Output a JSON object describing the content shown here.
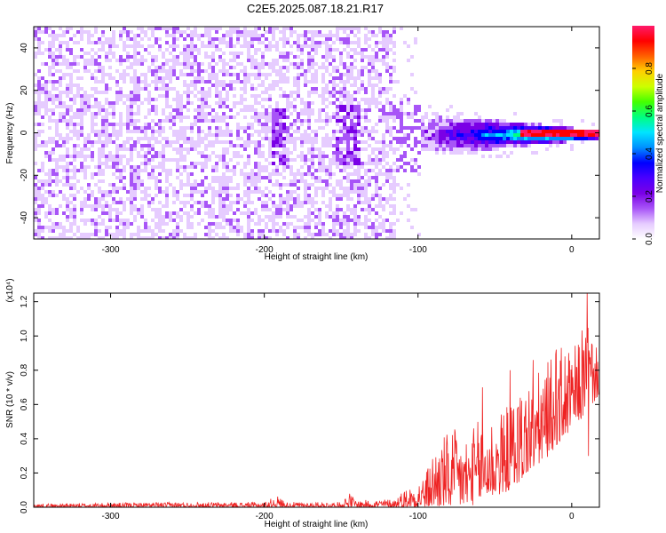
{
  "figure": {
    "title": "C2E5.2025.087.18.21.R17"
  },
  "chart_data": [
    {
      "type": "heatmap",
      "name": "spectrogram",
      "xlabel": "Height of straight line (km)",
      "ylabel": "Frequency (Hz)",
      "xlim": [
        -350,
        18
      ],
      "ylim": [
        -50,
        50
      ],
      "xticks": [
        -300,
        -200,
        -100,
        0
      ],
      "yticks": [
        -40,
        -20,
        0,
        20,
        40
      ],
      "colorbar": {
        "label": "Normalized spectral amplitude",
        "range": [
          0,
          1
        ],
        "ticks": [
          0.0,
          0.2,
          0.4,
          0.6,
          0.8
        ],
        "colors": [
          "#ffffff",
          "#e6ccff",
          "#a855f7",
          "#7a00e6",
          "#4a00ff",
          "#0000ff",
          "#0090ff",
          "#00e5ff",
          "#00ff80",
          "#44ff00",
          "#ccff00",
          "#ffd000",
          "#ff6000",
          "#ff0000",
          "#ff1a6b"
        ]
      },
      "features": {
        "noise_end_x": -115,
        "noise_sparse_end_x": -100,
        "signal_start_x": -110,
        "signal_center_freq": 0,
        "bright_columns_x": [
          -192,
          -150,
          -143,
          -108
        ]
      }
    },
    {
      "type": "line",
      "name": "snr",
      "xlabel": "Height of straight line (km)",
      "ylabel": "SNR (10 * v/v)",
      "scale_label": "(x10⁴)",
      "xlim": [
        -350,
        18
      ],
      "ylim": [
        0,
        1.25
      ],
      "xticks": [
        -300,
        -200,
        -100,
        0
      ],
      "yticks": [
        0.0,
        0.2,
        0.4,
        0.6,
        0.8,
        1.0,
        1.2
      ],
      "ytick_labels": [
        "0.0",
        "0.2",
        "0.4",
        "0.6",
        "0.8",
        "1.0",
        "1.2"
      ],
      "color": "#ee2222",
      "envelope": {
        "x": [
          -350,
          -260,
          -200,
          -192,
          -185,
          -150,
          -145,
          -140,
          -115,
          -110,
          -104,
          -100,
          -95,
          -90,
          -85,
          -80,
          -75,
          -70,
          -65,
          -60,
          -55,
          -50,
          -45,
          -40,
          -35,
          -30,
          -25,
          -20,
          -15,
          -10,
          -5,
          0,
          5,
          10,
          15,
          18
        ],
        "low": [
          0.0,
          0.0,
          0.0,
          0.0,
          0.0,
          0.0,
          0.0,
          0.0,
          0.0,
          0.0,
          0.0,
          0.0,
          0.0,
          0.0,
          0.0,
          0.0,
          0.0,
          0.0,
          0.01,
          0.03,
          0.05,
          0.06,
          0.08,
          0.1,
          0.14,
          0.18,
          0.22,
          0.26,
          0.3,
          0.36,
          0.4,
          0.46,
          0.5,
          0.56,
          0.62,
          0.66
        ],
        "high": [
          0.02,
          0.03,
          0.03,
          0.07,
          0.03,
          0.03,
          0.09,
          0.04,
          0.05,
          0.1,
          0.13,
          0.16,
          0.2,
          0.34,
          0.42,
          0.44,
          0.46,
          0.42,
          0.46,
          0.52,
          0.52,
          0.58,
          0.56,
          0.62,
          0.7,
          0.74,
          0.78,
          0.8,
          0.86,
          0.92,
          0.95,
          0.9,
          1.0,
          1.15,
          0.95,
          0.9
        ]
      },
      "spikes": [
        {
          "x": -58,
          "y": 0.7
        },
        {
          "x": -40,
          "y": 0.8
        },
        {
          "x": -25,
          "y": 0.86
        },
        {
          "x": -10,
          "y": 0.92
        },
        {
          "x": 10,
          "y": 1.26
        },
        {
          "x": 11,
          "y": 0.3
        }
      ]
    }
  ]
}
